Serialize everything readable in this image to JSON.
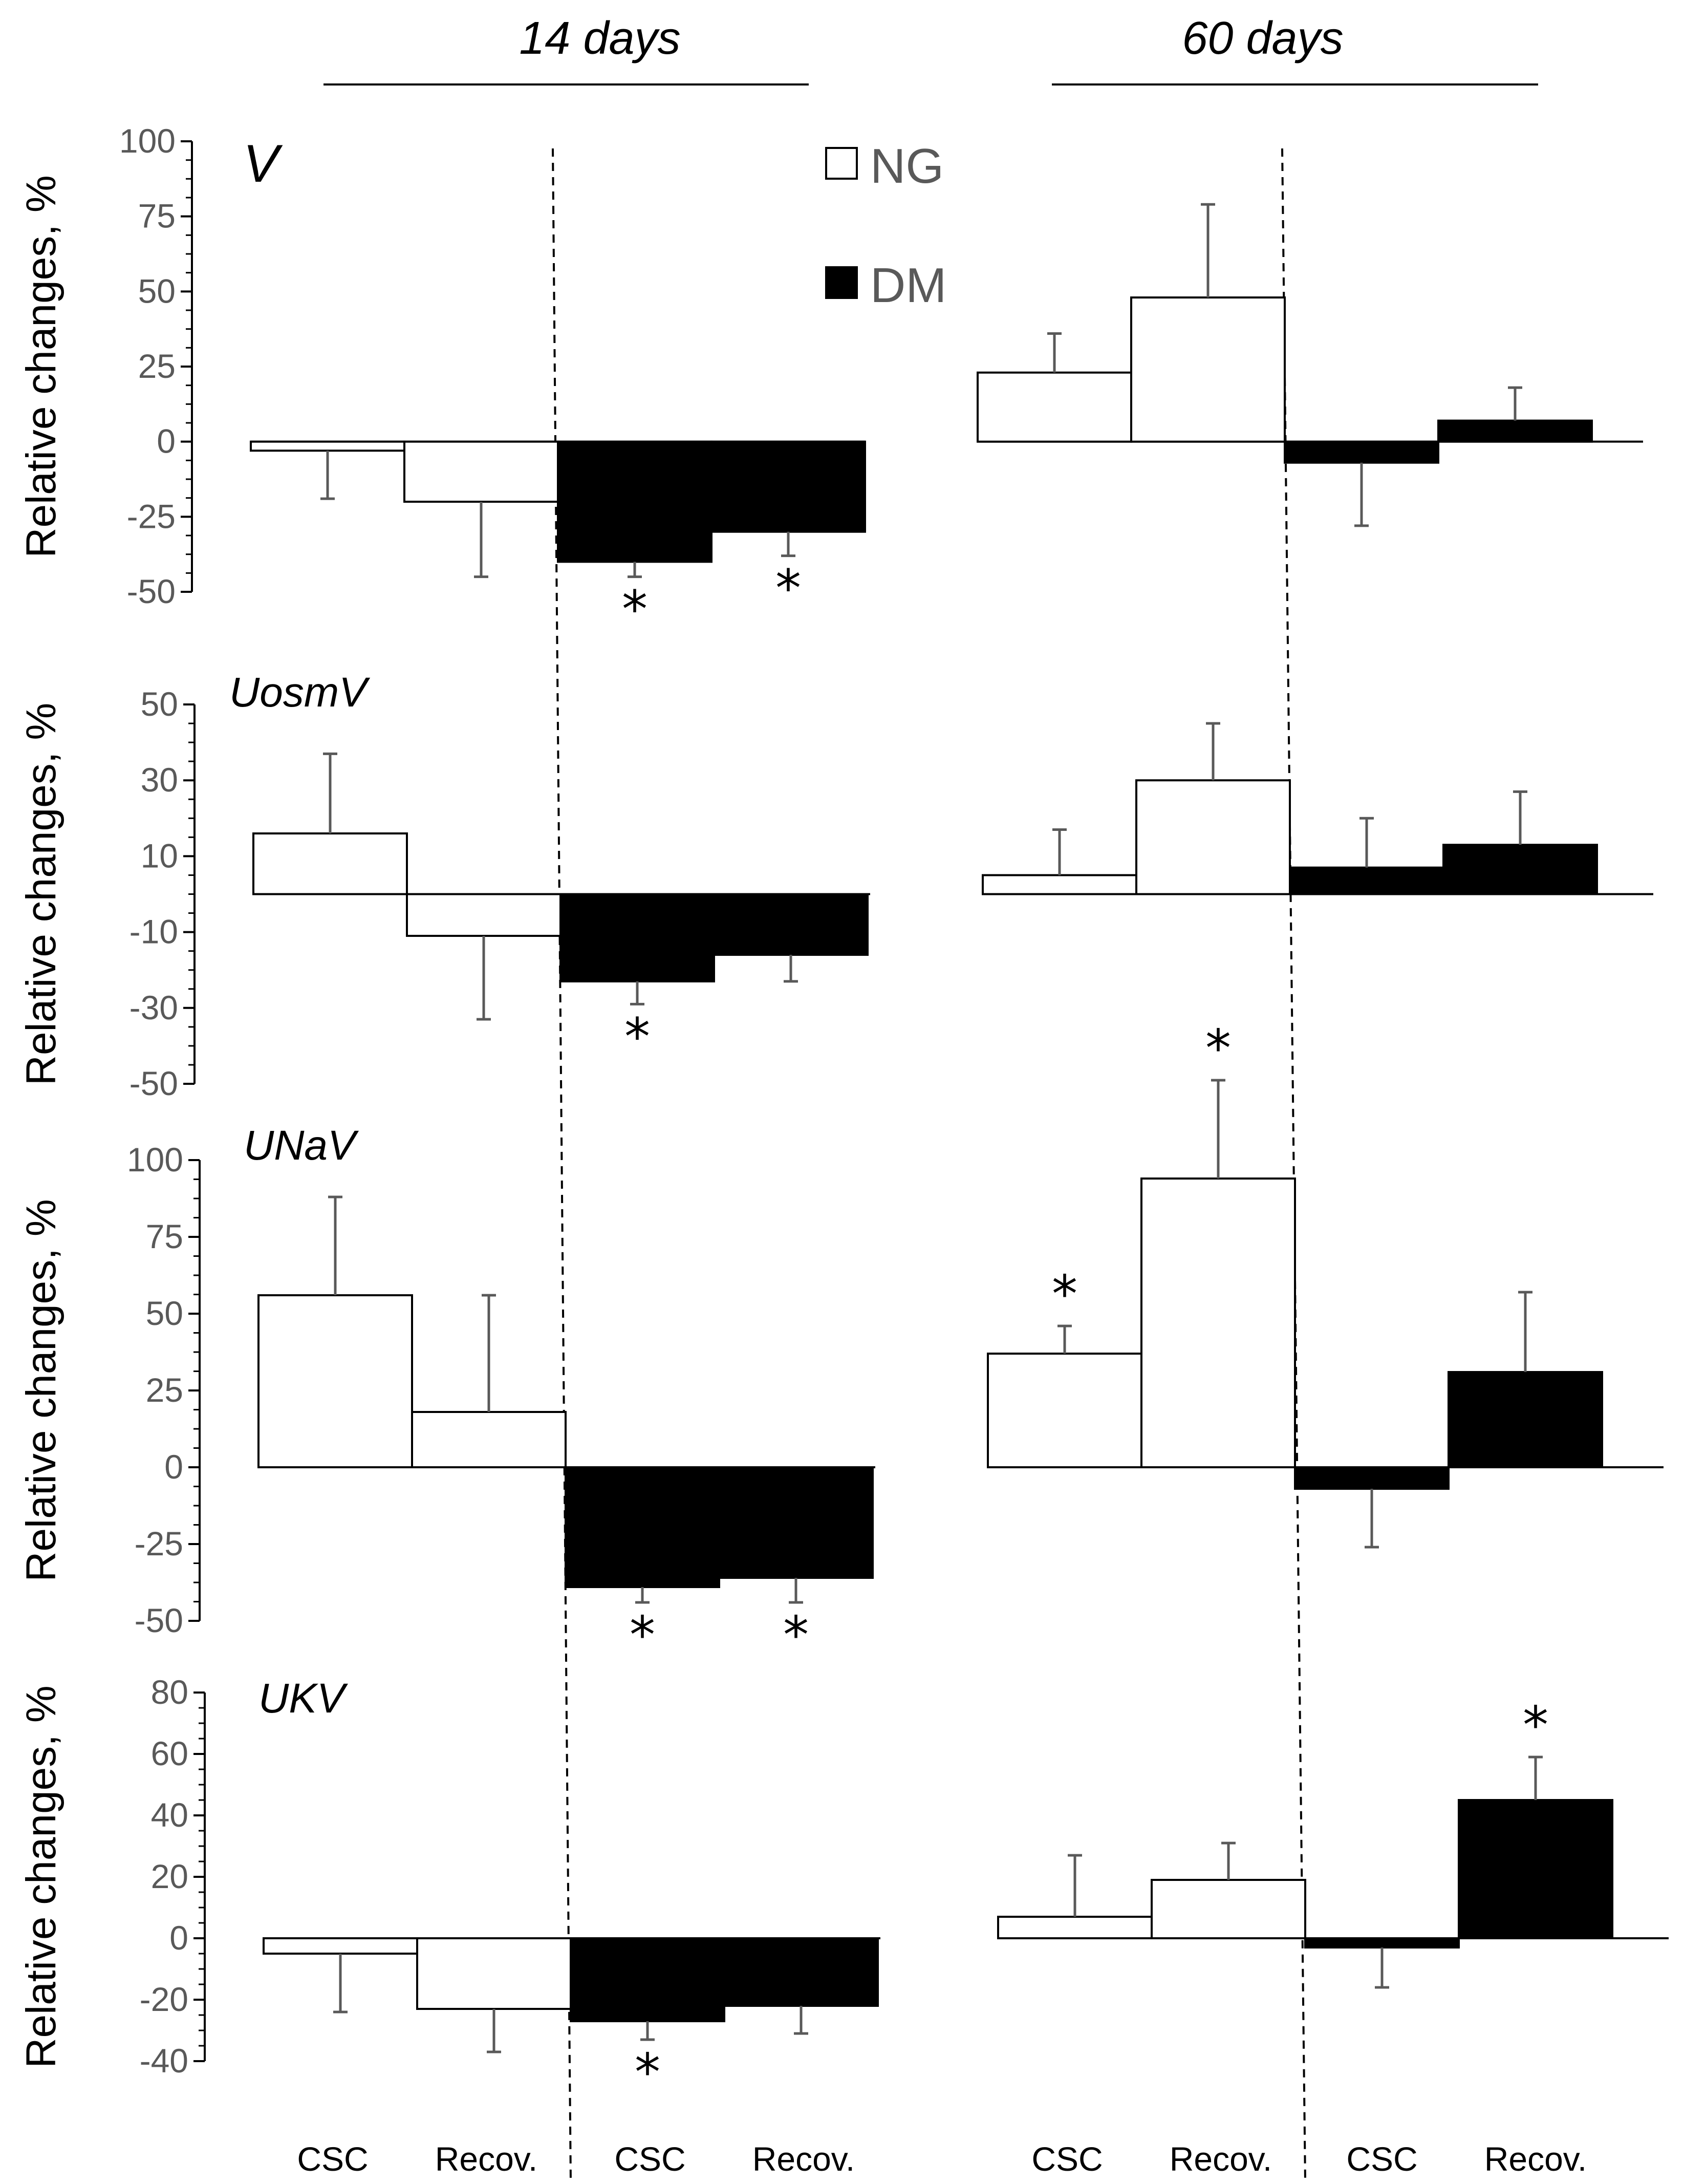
{
  "figure": {
    "period_labels": [
      "14  days",
      "60 days"
    ],
    "categories": [
      "CSC",
      "Recov.",
      "CSC",
      "Recov.",
      "CSC",
      "Recov.",
      "CSC",
      "Recov."
    ],
    "legend": [
      {
        "name": "NG",
        "color": "#ffffff"
      },
      {
        "name": "DM",
        "color": "#000000"
      }
    ],
    "colors": {
      "NG": "#ffffff",
      "DM": "#000000",
      "axis": "#000000",
      "tick_text": "#595959"
    }
  },
  "chart_data": [
    {
      "type": "bar",
      "title": "V",
      "ylabel": "Relative changes, %",
      "ylim": [
        -50,
        100
      ],
      "ticks": [
        -50,
        -25,
        0,
        25,
        50,
        75,
        100
      ],
      "categories": [
        "14d NG CSC",
        "14d NG Recov.",
        "14d DM CSC",
        "14d DM Recov.",
        "60d NG CSC",
        "60d NG Recov.",
        "60d DM CSC",
        "60d DM Recov."
      ],
      "values": [
        -3,
        -20,
        -40,
        -30,
        23,
        48,
        -7,
        7
      ],
      "errors": [
        16,
        25,
        5,
        8,
        13,
        31,
        21,
        11
      ],
      "significant": [
        false,
        false,
        true,
        true,
        false,
        false,
        false,
        false
      ]
    },
    {
      "type": "bar",
      "title": "UosmV",
      "ylabel": "Relative changes, %",
      "ylim": [
        -50,
        50
      ],
      "ticks": [
        -50,
        -30,
        -10,
        10,
        30,
        50
      ],
      "categories": [
        "14d NG CSC",
        "14d NG Recov.",
        "14d DM CSC",
        "14d DM Recov.",
        "60d NG CSC",
        "60d NG Recov.",
        "60d DM CSC",
        "60d DM Recov."
      ],
      "values": [
        16,
        -11,
        -23,
        -16,
        5,
        30,
        7,
        13
      ],
      "errors": [
        21,
        22,
        6,
        7,
        12,
        15,
        13,
        14
      ],
      "significant": [
        false,
        false,
        true,
        false,
        false,
        false,
        false,
        false
      ]
    },
    {
      "type": "bar",
      "title": "UNaV",
      "ylabel": "Relative changes, %",
      "ylim": [
        -50,
        100
      ],
      "ticks": [
        -50,
        -25,
        0,
        25,
        50,
        75,
        100
      ],
      "categories": [
        "14d NG CSC",
        "14d NG Recov.",
        "14d DM CSC",
        "14d DM Recov.",
        "60d NG CSC",
        "60d NG Recov.",
        "60d DM CSC",
        "60d DM Recov."
      ],
      "values": [
        56,
        18,
        -39,
        -36,
        37,
        94,
        -7,
        31
      ],
      "errors": [
        32,
        38,
        5,
        8,
        9,
        32,
        19,
        26
      ],
      "significant": [
        false,
        false,
        true,
        true,
        true,
        true,
        false,
        false
      ]
    },
    {
      "type": "bar",
      "title": "UKV",
      "ylabel": "Relative changes, %",
      "ylim": [
        -40,
        80
      ],
      "ticks": [
        -40,
        -20,
        0,
        20,
        40,
        60,
        80
      ],
      "categories": [
        "14d NG CSC",
        "14d NG Recov.",
        "14d DM CSC",
        "14d DM Recov.",
        "60d NG CSC",
        "60d NG Recov.",
        "60d DM CSC",
        "60d DM Recov."
      ],
      "values": [
        -5,
        -23,
        -27,
        -22,
        7,
        19,
        -3,
        45
      ],
      "errors": [
        19,
        14,
        6,
        9,
        20,
        12,
        13,
        14
      ],
      "significant": [
        false,
        false,
        true,
        false,
        false,
        false,
        false,
        true
      ]
    }
  ]
}
